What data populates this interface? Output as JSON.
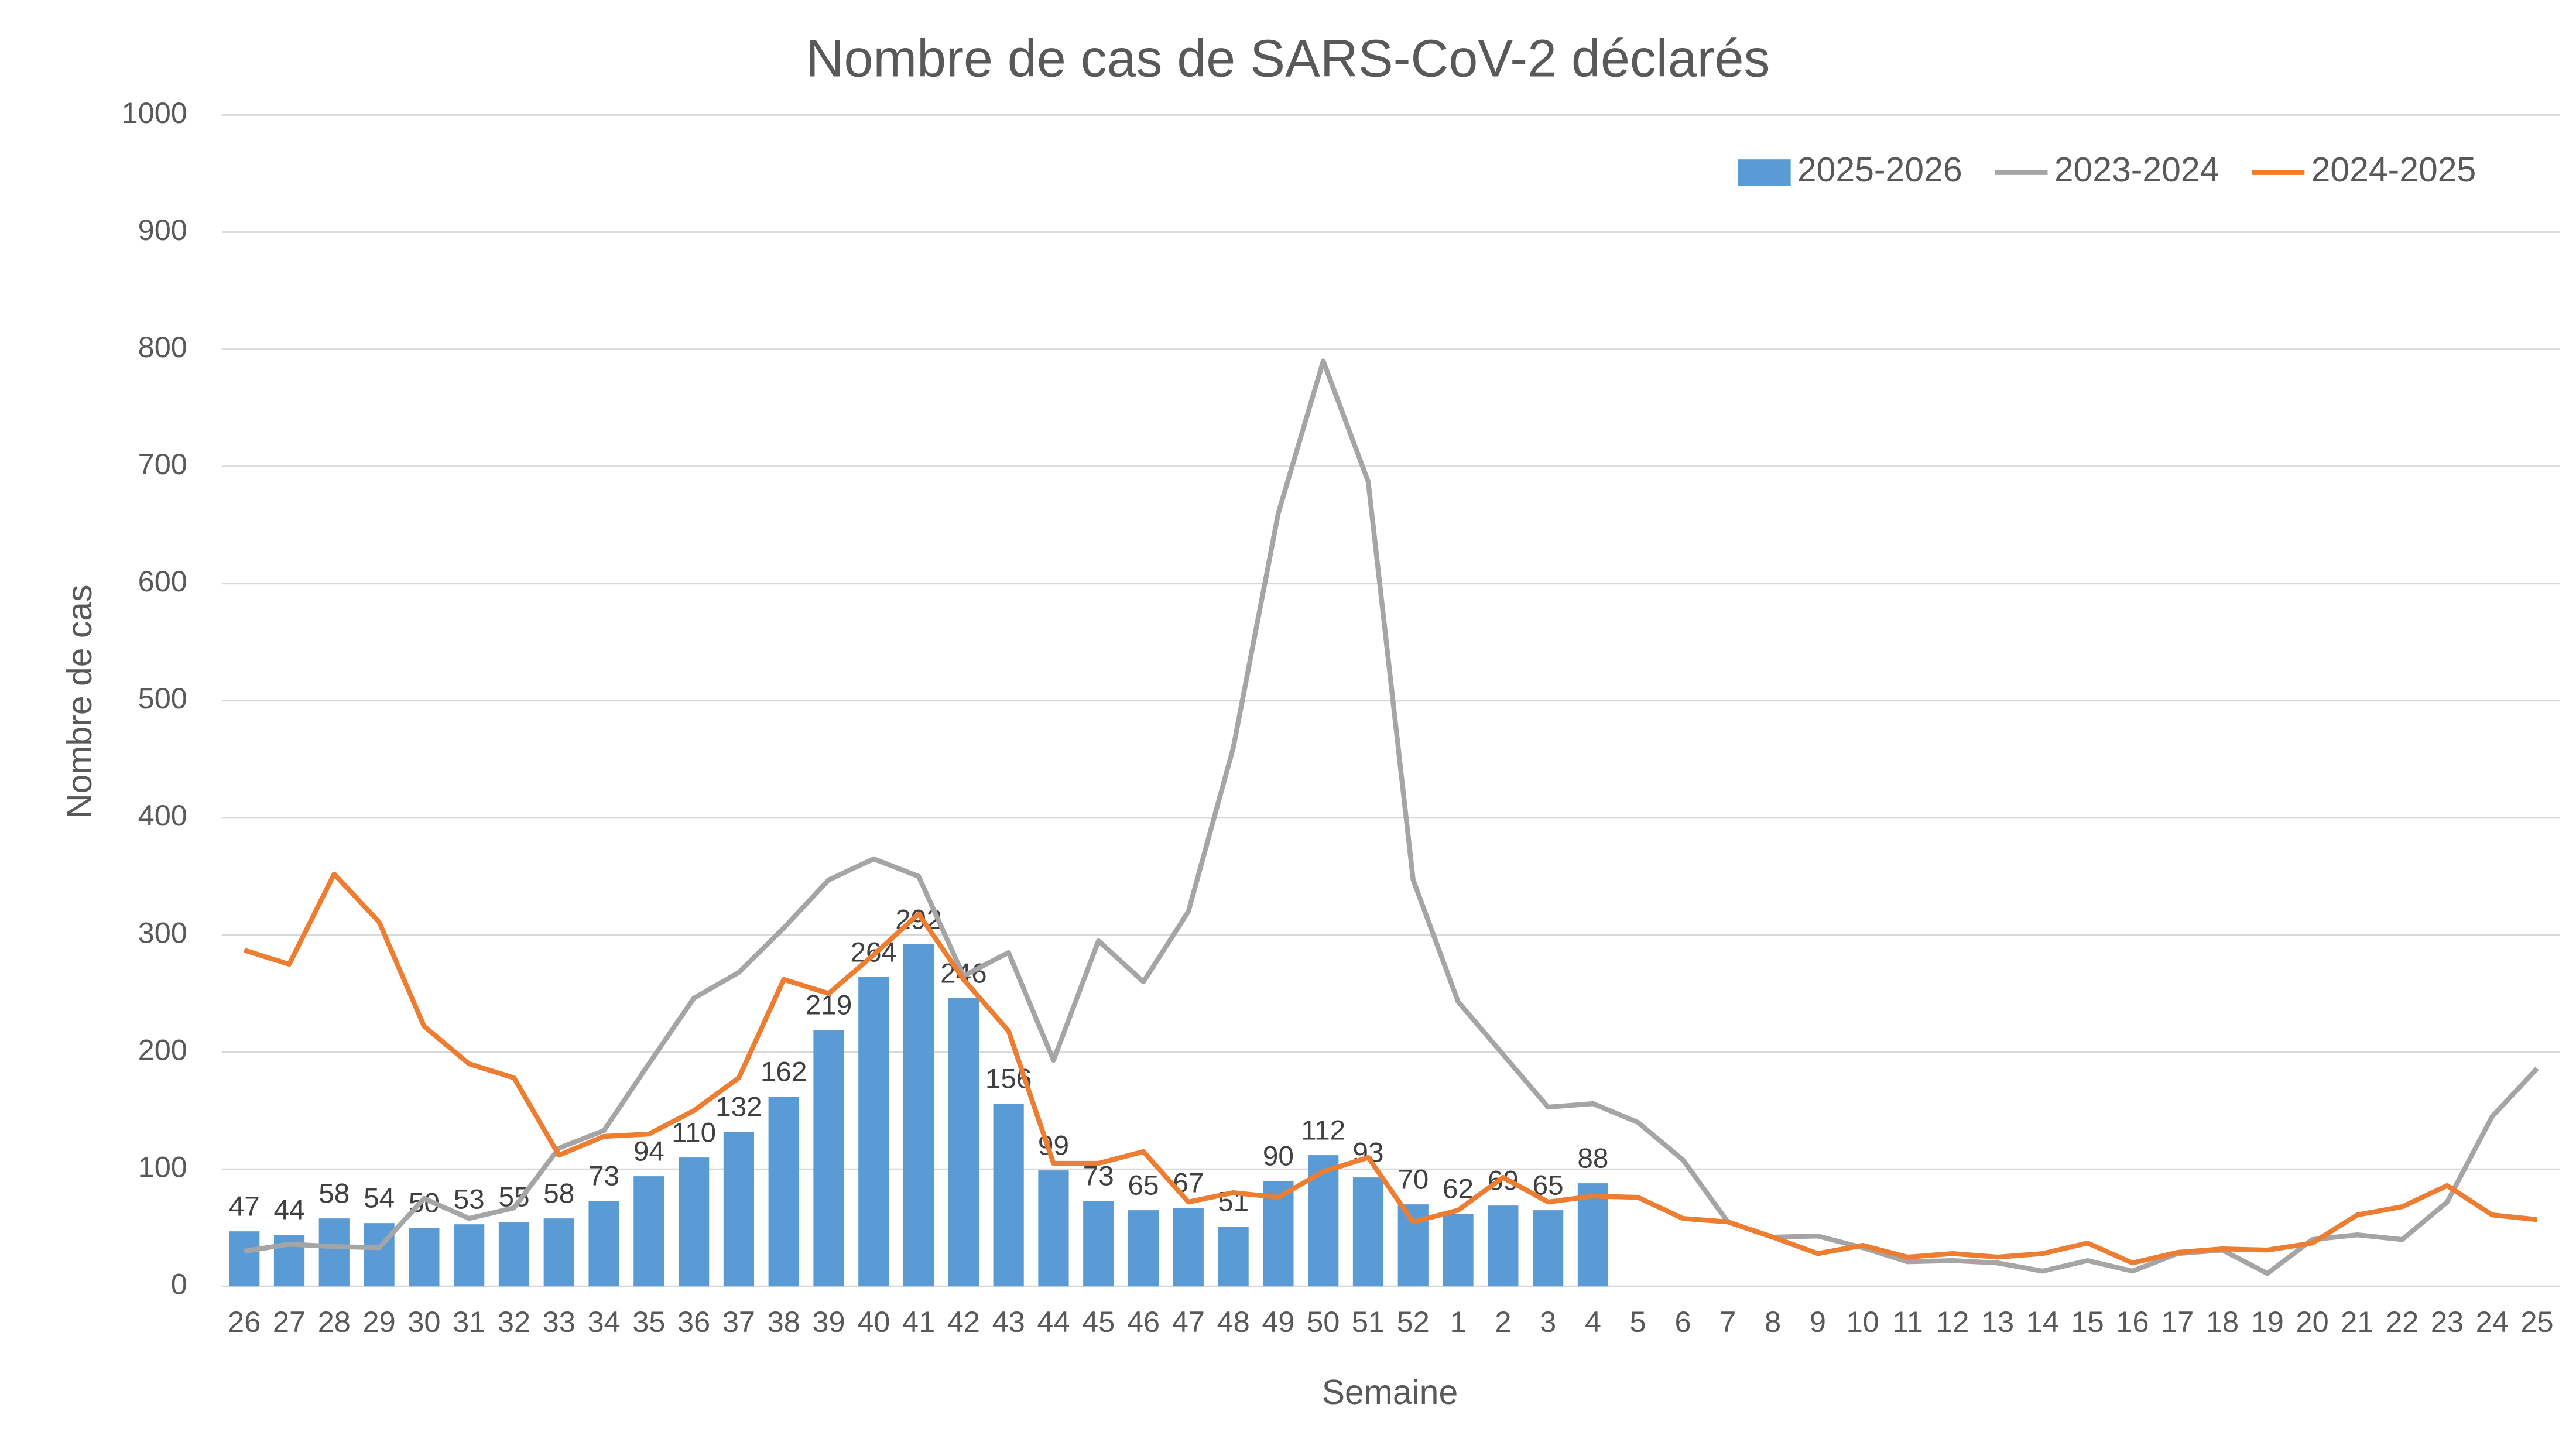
{
  "chart_data": {
    "type": "bar",
    "title": "Nombre de cas de SARS-CoV-2 déclarés",
    "x_label": "Semaine",
    "y_label": "Nombre de cas",
    "categories": [
      "26",
      "27",
      "28",
      "29",
      "30",
      "31",
      "32",
      "33",
      "34",
      "35",
      "36",
      "37",
      "38",
      "39",
      "40",
      "41",
      "42",
      "43",
      "44",
      "45",
      "46",
      "47",
      "48",
      "49",
      "50",
      "51",
      "52",
      "1",
      "2",
      "3",
      "4",
      "5",
      "6",
      "7",
      "8",
      "9",
      "10",
      "11",
      "12",
      "13",
      "14",
      "15",
      "16",
      "17",
      "18",
      "19",
      "20",
      "21",
      "22",
      "23",
      "24",
      "25"
    ],
    "ylim": [
      0,
      1000
    ],
    "yticks": [
      0,
      100,
      200,
      300,
      400,
      500,
      600,
      700,
      800,
      900,
      1000
    ],
    "grid": true,
    "legend": "top-right",
    "series": [
      {
        "name": "2025-2026",
        "kind": "bar",
        "color": "#5b9bd5",
        "values": [
          47,
          44,
          58,
          54,
          50,
          53,
          55,
          58,
          73,
          94,
          110,
          132,
          162,
          219,
          264,
          292,
          246,
          156,
          99,
          73,
          65,
          67,
          51,
          90,
          112,
          93,
          70,
          62,
          69,
          65,
          88,
          null,
          null,
          null,
          null,
          null,
          null,
          null,
          null,
          null,
          null,
          null,
          null,
          null,
          null,
          null,
          null,
          null,
          null,
          null,
          null,
          null
        ]
      },
      {
        "name": "2023-2024",
        "kind": "line",
        "color": "#a5a5a5",
        "values": [
          30,
          36,
          34,
          33,
          75,
          58,
          67,
          118,
          133,
          190,
          246,
          268,
          306,
          347,
          365,
          350,
          265,
          285,
          193,
          295,
          260,
          320,
          460,
          660,
          790,
          687,
          347,
          243,
          198,
          153,
          156,
          140,
          108,
          55,
          42,
          43,
          33,
          21,
          22,
          20,
          13,
          22,
          13,
          28,
          31,
          11,
          40,
          44,
          40,
          72,
          145,
          186
        ]
      },
      {
        "name": "2024-2025",
        "kind": "line",
        "color": "#ed7d31",
        "values": [
          287,
          275,
          352,
          311,
          222,
          190,
          178,
          112,
          128,
          130,
          150,
          178,
          262,
          250,
          283,
          318,
          262,
          218,
          105,
          105,
          115,
          72,
          80,
          76,
          98,
          110,
          55,
          65,
          93,
          72,
          77,
          76,
          58,
          55,
          42,
          28,
          35,
          25,
          28,
          25,
          28,
          37,
          20,
          29,
          32,
          31,
          37,
          61,
          68,
          86,
          61,
          57
        ]
      }
    ]
  }
}
